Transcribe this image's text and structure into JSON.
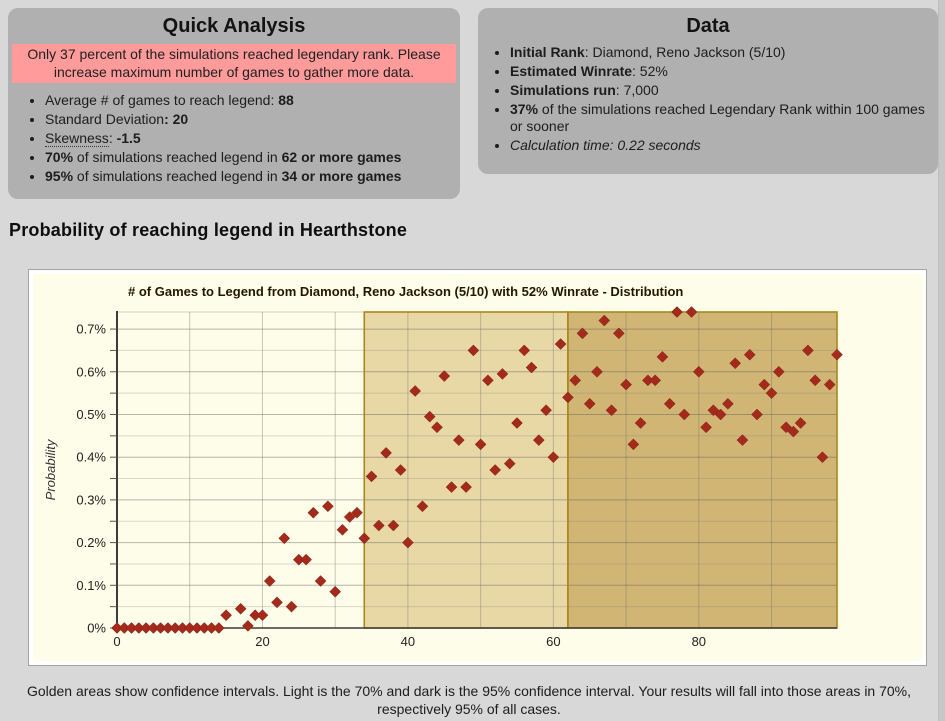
{
  "page": {
    "background": "#d8d8d8",
    "panel_color": "#b0b0b0",
    "alert_color": "#ff9b9b"
  },
  "heading": "Probability of reaching legend in Hearthstone",
  "footer": "Golden areas show confidence intervals. Light is the 70% and dark is the 95% confidence interval. Your results will fall into those areas in 70%, respectively 95% of all cases.",
  "quick_analysis": {
    "title": "Quick Analysis",
    "alert": "Only 37 percent of the simulations reached legendary rank. Please increase maximum number of games to gather more data.",
    "items": [
      {
        "segments": [
          {
            "t": "Average # of games to reach legend: "
          },
          {
            "t": "88",
            "b": true
          }
        ]
      },
      {
        "segments": [
          {
            "t": "Standard Deviation"
          },
          {
            "t": ": ",
            "b": true
          },
          {
            "t": "20",
            "b": true
          }
        ]
      },
      {
        "segments": [
          {
            "t": "Skewness",
            "u": true
          },
          {
            "t": ": "
          },
          {
            "t": "-1.5",
            "b": true
          }
        ]
      },
      {
        "segments": [
          {
            "t": "70%",
            "b": true
          },
          {
            "t": " of simulations reached legend in "
          },
          {
            "t": "62 or more games",
            "b": true
          }
        ]
      },
      {
        "segments": [
          {
            "t": "95%",
            "b": true
          },
          {
            "t": " of simulations reached legend in "
          },
          {
            "t": "34 or more games",
            "b": true
          }
        ]
      }
    ]
  },
  "data_panel": {
    "title": "Data",
    "items": [
      {
        "segments": [
          {
            "t": "Initial Rank",
            "b": true
          },
          {
            "t": ": Diamond, Reno Jackson (5/10)"
          }
        ]
      },
      {
        "segments": [
          {
            "t": "Estimated Winrate",
            "b": true
          },
          {
            "t": ": 52%"
          }
        ]
      },
      {
        "segments": [
          {
            "t": "Simulations run",
            "b": true
          },
          {
            "t": ": 7,000"
          }
        ]
      },
      {
        "segments": [
          {
            "t": "37%",
            "b": true
          },
          {
            "t": " of the simulations reached Legendary Rank within 100 games or sooner"
          }
        ]
      },
      {
        "segments": [
          {
            "t": "Calculation time: 0.22 seconds",
            "i": true
          }
        ]
      }
    ]
  },
  "chart_data": {
    "type": "scatter",
    "title": "# of Games to Legend from Diamond, Reno Jackson (5/10) with 52% Winrate - Distribution",
    "xlabel": "",
    "ylabel": "Probability",
    "xlim": [
      0,
      99
    ],
    "ylim": [
      0,
      0.74
    ],
    "x_ticks": {
      "values": [
        0,
        20,
        40,
        60,
        80
      ],
      "labels": [
        "0",
        "20",
        "40",
        "60",
        "80"
      ]
    },
    "x_grid_step": 10,
    "y_ticks": {
      "values": [
        0,
        0.1,
        0.2,
        0.3,
        0.4,
        0.5,
        0.6,
        0.7
      ],
      "labels": [
        "0%",
        "0.1%",
        "0.2%",
        "0.3%",
        "0.4%",
        "0.5%",
        "0.6%",
        "0.7%"
      ]
    },
    "y_grid_step": 0.05,
    "grid": true,
    "legend_position": "none",
    "plot_background": "#fdfde9",
    "bands": [
      {
        "name": "confidence-light-70",
        "from": 34,
        "to": 62,
        "color": "#e8d8a6"
      },
      {
        "name": "confidence-dark-95",
        "from": 62,
        "to": 99,
        "color": "#d1b575"
      }
    ],
    "band_border_color": "#a9881c",
    "marker": {
      "shape": "diamond",
      "color": "#a42a1c",
      "edge": "#7d1f12",
      "size": 11
    },
    "axis_color": "#3c3c3c",
    "text_color": "#222222",
    "points": [
      [
        0,
        0
      ],
      [
        1,
        0
      ],
      [
        2,
        0
      ],
      [
        3,
        0
      ],
      [
        4,
        0
      ],
      [
        5,
        0
      ],
      [
        6,
        0
      ],
      [
        7,
        0
      ],
      [
        8,
        0
      ],
      [
        9,
        0
      ],
      [
        10,
        0
      ],
      [
        11,
        0
      ],
      [
        12,
        0
      ],
      [
        13,
        0
      ],
      [
        14,
        0
      ],
      [
        15,
        0.03
      ],
      [
        17,
        0.045
      ],
      [
        18,
        0.005
      ],
      [
        19,
        0.03
      ],
      [
        20,
        0.03
      ],
      [
        21,
        0.11
      ],
      [
        22,
        0.06
      ],
      [
        23,
        0.21
      ],
      [
        24,
        0.05
      ],
      [
        25,
        0.16
      ],
      [
        26,
        0.16
      ],
      [
        27,
        0.27
      ],
      [
        28,
        0.11
      ],
      [
        29,
        0.285
      ],
      [
        30,
        0.085
      ],
      [
        31,
        0.23
      ],
      [
        32,
        0.26
      ],
      [
        33,
        0.27
      ],
      [
        34,
        0.21
      ],
      [
        35,
        0.355
      ],
      [
        36,
        0.24
      ],
      [
        37,
        0.41
      ],
      [
        38,
        0.24
      ],
      [
        39,
        0.37
      ],
      [
        40,
        0.2
      ],
      [
        41,
        0.555
      ],
      [
        42,
        0.285
      ],
      [
        43,
        0.495
      ],
      [
        44,
        0.47
      ],
      [
        45,
        0.59
      ],
      [
        46,
        0.33
      ],
      [
        47,
        0.44
      ],
      [
        48,
        0.33
      ],
      [
        49,
        0.65
      ],
      [
        50,
        0.43
      ],
      [
        51,
        0.58
      ],
      [
        52,
        0.37
      ],
      [
        53,
        0.595
      ],
      [
        54,
        0.385
      ],
      [
        55,
        0.48
      ],
      [
        56,
        0.65
      ],
      [
        57,
        0.61
      ],
      [
        58,
        0.44
      ],
      [
        59,
        0.51
      ],
      [
        60,
        0.4
      ],
      [
        61,
        0.665
      ],
      [
        62,
        0.54
      ],
      [
        63,
        0.58
      ],
      [
        64,
        0.69
      ],
      [
        65,
        0.525
      ],
      [
        66,
        0.6
      ],
      [
        67,
        0.72
      ],
      [
        68,
        0.51
      ],
      [
        69,
        0.69
      ],
      [
        70,
        0.57
      ],
      [
        71,
        0.43
      ],
      [
        72,
        0.48
      ],
      [
        73,
        0.58
      ],
      [
        74,
        0.58
      ],
      [
        75,
        0.635
      ],
      [
        76,
        0.525
      ],
      [
        77,
        0.74
      ],
      [
        78,
        0.5
      ],
      [
        79,
        0.74
      ],
      [
        80,
        0.6
      ],
      [
        81,
        0.47
      ],
      [
        82,
        0.51
      ],
      [
        83,
        0.5
      ],
      [
        84,
        0.525
      ],
      [
        85,
        0.62
      ],
      [
        86,
        0.44
      ],
      [
        87,
        0.64
      ],
      [
        88,
        0.5
      ],
      [
        89,
        0.57
      ],
      [
        90,
        0.55
      ],
      [
        91,
        0.6
      ],
      [
        92,
        0.47
      ],
      [
        93,
        0.46
      ],
      [
        94,
        0.48
      ],
      [
        95,
        0.65
      ],
      [
        96,
        0.58
      ],
      [
        97,
        0.4
      ],
      [
        98,
        0.57
      ],
      [
        99,
        0.64
      ]
    ]
  }
}
